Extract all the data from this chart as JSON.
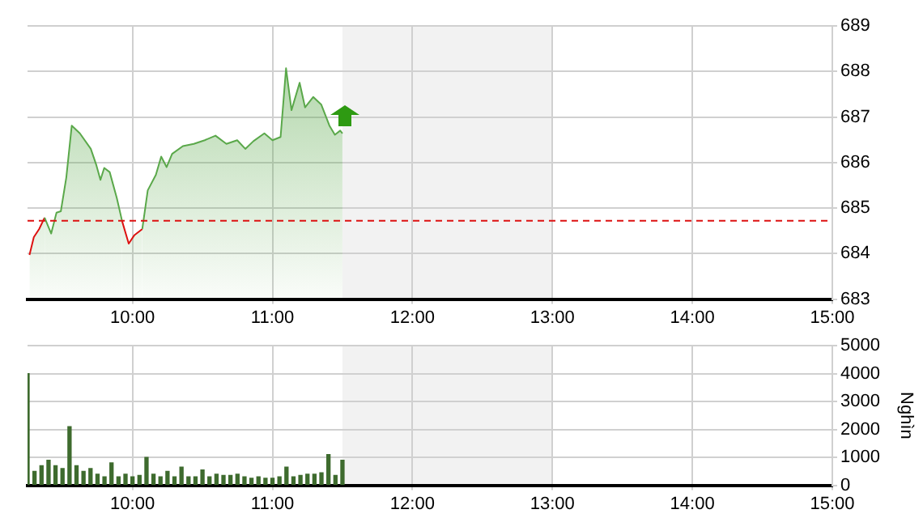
{
  "chart_data": [
    {
      "type": "area",
      "x": [
        9.264,
        9.295,
        9.333,
        9.372,
        9.419,
        9.457,
        9.488,
        9.527,
        9.566,
        9.624,
        9.702,
        9.74,
        9.771,
        9.798,
        9.837,
        9.888,
        9.926,
        9.973,
        10.012,
        10.07,
        10.109,
        10.167,
        10.205,
        10.244,
        10.283,
        10.36,
        10.438,
        10.516,
        10.593,
        10.671,
        10.748,
        10.806,
        10.864,
        10.942,
        11.0,
        11.058,
        11.097,
        11.136,
        11.194,
        11.233,
        11.291,
        11.349,
        11.407,
        11.446,
        11.484,
        11.5
      ],
      "series": [
        {
          "color": "#5aa84a",
          "colors": [
            "#dd1111",
            "#dd1111",
            "#dd1111",
            "#dd1111",
            "#5aa84a",
            "#5aa84a",
            "#5aa84a",
            "#5aa84a",
            "#5aa84a",
            "#5aa84a",
            "#5aa84a",
            "#5aa84a",
            "#5aa84a",
            "#5aa84a",
            "#5aa84a",
            "#5aa84a",
            "#dd1111",
            "#dd1111",
            "#dd1111",
            "#dd1111",
            "#5aa84a",
            "#5aa84a",
            "#5aa84a",
            "#5aa84a",
            "#5aa84a",
            "#5aa84a",
            "#5aa84a",
            "#5aa84a",
            "#5aa84a",
            "#5aa84a",
            "#5aa84a",
            "#5aa84a",
            "#5aa84a",
            "#5aa84a",
            "#5aa84a",
            "#5aa84a",
            "#5aa84a",
            "#5aa84a",
            "#5aa84a",
            "#5aa84a",
            "#5aa84a",
            "#5aa84a",
            "#5aa84a",
            "#5aa84a",
            "#5aa84a",
            "#5aa84a"
          ],
          "values": [
            683.97,
            684.36,
            684.54,
            684.79,
            684.44,
            684.9,
            684.93,
            685.67,
            686.81,
            686.64,
            686.3,
            685.96,
            685.62,
            685.88,
            685.79,
            685.22,
            684.71,
            684.22,
            684.4,
            684.54,
            685.39,
            685.73,
            686.13,
            685.9,
            686.19,
            686.36,
            686.41,
            686.49,
            686.59,
            686.41,
            686.49,
            686.3,
            686.47,
            686.64,
            686.49,
            686.56,
            688.07,
            687.15,
            687.75,
            687.21,
            687.44,
            687.27,
            686.81,
            686.61,
            686.7,
            686.64
          ]
        }
      ],
      "xlim": [
        9.25,
        15
      ],
      "xticks": [
        {
          "value": 10,
          "label": "10:00"
        },
        {
          "value": 11,
          "label": "11:00"
        },
        {
          "value": 12,
          "label": "12:00"
        },
        {
          "value": 13,
          "label": "13:00"
        },
        {
          "value": 14,
          "label": "14:00"
        },
        {
          "value": 15,
          "label": "15:00"
        }
      ],
      "ylim": [
        683,
        689
      ],
      "yticks": [
        683,
        684,
        685,
        686,
        687,
        688,
        689
      ],
      "ref_lines": [
        {
          "axis": "y",
          "value": 684.72,
          "color": "#dd1111",
          "line_style": "dashed"
        }
      ],
      "bands": [
        {
          "axis": "x",
          "from": 11.5,
          "to": 13,
          "color": "#f2f2f2"
        }
      ],
      "grid": true,
      "legend": false,
      "marker": "none"
    },
    {
      "type": "bar",
      "ylabel": "Nghìn",
      "x": [
        9.25,
        9.3,
        9.35,
        9.4,
        9.45,
        9.5,
        9.55,
        9.6,
        9.65,
        9.7,
        9.75,
        9.8,
        9.85,
        9.9,
        9.95,
        10.0,
        10.05,
        10.1,
        10.15,
        10.2,
        10.25,
        10.3,
        10.35,
        10.4,
        10.45,
        10.5,
        10.55,
        10.6,
        10.65,
        10.7,
        10.75,
        10.8,
        10.85,
        10.9,
        10.95,
        11.0,
        11.05,
        11.1,
        11.15,
        11.2,
        11.25,
        11.3,
        11.35,
        11.4,
        11.45,
        11.5
      ],
      "series": [
        {
          "color": "#3e6b2e",
          "values": [
            4000,
            500,
            700,
            900,
            700,
            600,
            2100,
            700,
            500,
            600,
            400,
            300,
            800,
            300,
            400,
            300,
            350,
            1000,
            400,
            300,
            500,
            300,
            650,
            300,
            300,
            550,
            300,
            400,
            350,
            350,
            400,
            300,
            250,
            300,
            250,
            250,
            300,
            650,
            300,
            350,
            400,
            400,
            450,
            1100,
            350,
            900
          ]
        }
      ],
      "xlim": [
        9.25,
        15
      ],
      "xticks": [
        {
          "value": 10,
          "label": "10:00"
        },
        {
          "value": 11,
          "label": "11:00"
        },
        {
          "value": 12,
          "label": "12:00"
        },
        {
          "value": 13,
          "label": "13:00"
        },
        {
          "value": 14,
          "label": "14:00"
        },
        {
          "value": 15,
          "label": "15:00"
        }
      ],
      "ylim": [
        0,
        5000
      ],
      "yticks": [
        0,
        1000,
        2000,
        3000,
        4000,
        5000
      ],
      "bands": [
        {
          "axis": "x",
          "from": 11.5,
          "to": 13,
          "color": "#f2f2f2"
        }
      ],
      "grid": true,
      "legend": false
    }
  ]
}
